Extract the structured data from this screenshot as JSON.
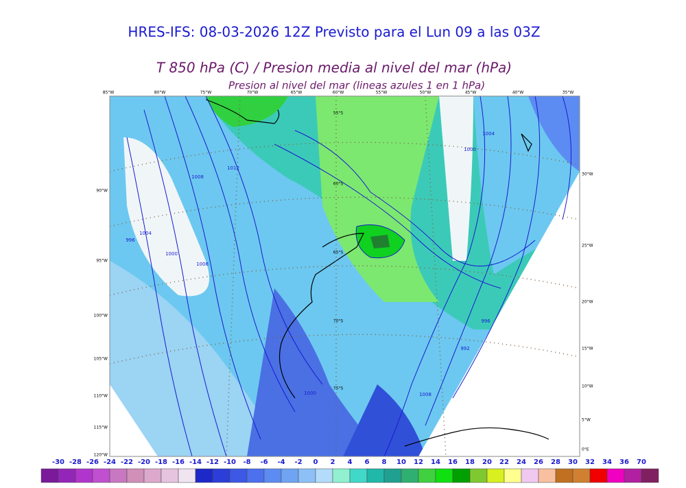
{
  "header": {
    "title": "HRES-IFS: 08-03-2026 12Z Previsto para el Lun 09 a las 03Z",
    "subtitle": "T 850 hPa (C) / Presion media al nivel del mar (hPa)",
    "subtitle2": "Presion al nivel del mar (lineas azules 1 en 1 hPa)"
  },
  "map": {
    "top_labels": [
      "85°W",
      "80°W",
      "75°W",
      "70°W",
      "65°W",
      "60°W",
      "55°W",
      "50°W",
      "45°W",
      "40°W",
      "35°W"
    ],
    "left_labels": [
      "90°W",
      "95°W",
      "100°W",
      "105°W",
      "110°W",
      "115°W",
      "120°W"
    ],
    "right_labels": [
      "30°W",
      "25°W",
      "20°W",
      "15°W",
      "10°W",
      "5°W",
      "0°E"
    ],
    "lat_labels": [
      "55°S",
      "60°S",
      "65°S",
      "70°S",
      "75°S"
    ],
    "pressure_labels": [
      "1012",
      "1008",
      "1004",
      "1000",
      "996",
      "1008",
      "1004",
      "1000",
      "996",
      "992",
      "1008",
      "1000"
    ]
  },
  "colorbar": {
    "levels": [
      -30,
      -28,
      -26,
      -24,
      -22,
      -20,
      -18,
      -16,
      -14,
      -12,
      -10,
      -8,
      -6,
      -4,
      -2,
      0,
      2,
      4,
      6,
      8,
      10,
      12,
      14,
      16,
      18,
      20,
      22,
      24,
      26,
      28,
      30,
      32,
      34,
      36,
      70
    ],
    "colors": [
      "#7a1a9a",
      "#9326b8",
      "#b035cc",
      "#c050d0",
      "#c878c0",
      "#d090b8",
      "#dca8cc",
      "#e6c4e0",
      "#f0e4f0",
      "#1c28c8",
      "#2c3ed8",
      "#3c58e4",
      "#4c70ee",
      "#5c8cf2",
      "#70a4f2",
      "#8cc0f6",
      "#b4dcfa",
      "#90f0d0",
      "#40d8c8",
      "#20b8a8",
      "#20a090",
      "#30b070",
      "#40d040",
      "#10e010",
      "#00a000",
      "#80c830",
      "#d8f020",
      "#ffff90",
      "#f0c8f0",
      "#f8c0a0",
      "#c07020",
      "#d08030",
      "#f00000",
      "#f000c0",
      "#b020a0",
      "#802060"
    ]
  }
}
